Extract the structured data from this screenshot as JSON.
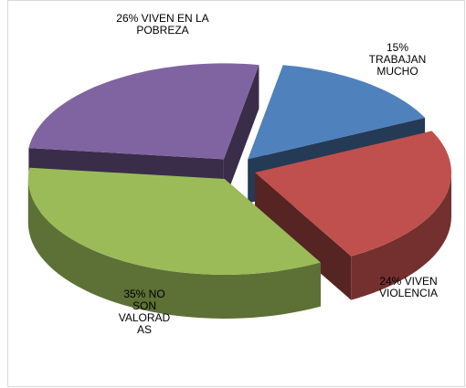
{
  "chart_data": {
    "type": "pie",
    "threed": true,
    "values": [
      15,
      24,
      35,
      26
    ],
    "value_labels": [
      "15% TRABAJAN MUCHO",
      "24% VIVEN VIOLENCIA",
      "35% NO SON VALORADAS",
      "26% VIVEN EN LA POBREZA"
    ],
    "colors": [
      "#4f81bd",
      "#c0504d",
      "#9bbb59",
      "#8064a2"
    ]
  }
}
